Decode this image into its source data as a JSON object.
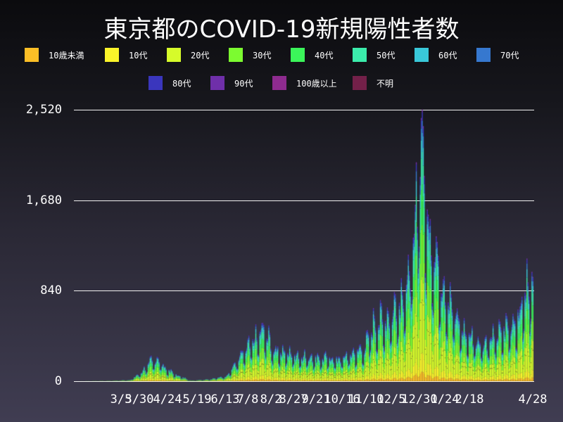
{
  "title": "東京都のCOVID-19新規陽性者数",
  "legend": [
    {
      "label": "10歳未満",
      "color": "#fbbe26"
    },
    {
      "label": "10代",
      "color": "#fbf42a"
    },
    {
      "label": "20代",
      "color": "#d6fb2a"
    },
    {
      "label": "30代",
      "color": "#7cfb30"
    },
    {
      "label": "40代",
      "color": "#3bf55a"
    },
    {
      "label": "50代",
      "color": "#3becab"
    },
    {
      "label": "60代",
      "color": "#39c8d9"
    },
    {
      "label": "70代",
      "color": "#3678cf"
    },
    {
      "label": "80代",
      "color": "#3a36bd"
    },
    {
      "label": "90代",
      "color": "#6f2fa9"
    },
    {
      "label": "100歳以上",
      "color": "#8e2b8f"
    },
    {
      "label": "不明",
      "color": "#732049"
    }
  ],
  "yaxis": {
    "ticks": [
      "2,520",
      "1,680",
      "840",
      "0"
    ],
    "values": [
      2520,
      1680,
      840,
      0
    ]
  },
  "xaxis": {
    "ticks": [
      "3/5",
      "3/30",
      "4/24",
      "5/19",
      "6/13",
      "7/8",
      "8/2",
      "8/27",
      "9/21",
      "10/16",
      "11/10",
      "12/5",
      "12/30",
      "1/24",
      "2/18",
      "4/28"
    ]
  },
  "chart_data": {
    "type": "bar",
    "stacked": true,
    "title": "東京都のCOVID-19新規陽性者数",
    "xlabel": "",
    "ylabel": "",
    "ylim": [
      0,
      2520
    ],
    "grid": true,
    "legend_position": "top",
    "x_start": "2020-01-24",
    "x_end": "2021-04-28",
    "series_names": [
      "10歳未満",
      "10代",
      "20代",
      "30代",
      "40代",
      "50代",
      "60代",
      "70代",
      "80代",
      "90代",
      "100歳以上",
      "不明"
    ],
    "age_share": [
      0.035,
      0.07,
      0.28,
      0.19,
      0.15,
      0.12,
      0.07,
      0.045,
      0.03,
      0.01,
      0.0005,
      0.0
    ],
    "daily_total_keypoints": [
      [
        "2020-01-24",
        0
      ],
      [
        "2020-02-28",
        3
      ],
      [
        "2020-03-20",
        10
      ],
      [
        "2020-03-31",
        78
      ],
      [
        "2020-04-10",
        180
      ],
      [
        "2020-04-17",
        201
      ],
      [
        "2020-04-25",
        110
      ],
      [
        "2020-05-05",
        60
      ],
      [
        "2020-05-20",
        5
      ],
      [
        "2020-06-10",
        20
      ],
      [
        "2020-06-25",
        50
      ],
      [
        "2020-07-10",
        240
      ],
      [
        "2020-08-01",
        470
      ],
      [
        "2020-08-10",
        300
      ],
      [
        "2020-08-27",
        250
      ],
      [
        "2020-09-20",
        220
      ],
      [
        "2020-10-16",
        200
      ],
      [
        "2020-11-10",
        300
      ],
      [
        "2020-11-20",
        530
      ],
      [
        "2020-12-05",
        580
      ],
      [
        "2020-12-24",
        880
      ],
      [
        "2020-12-31",
        1337
      ],
      [
        "2021-01-07",
        2520
      ],
      [
        "2021-01-09",
        1680
      ],
      [
        "2021-01-14",
        1400
      ],
      [
        "2021-01-24",
        986
      ],
      [
        "2021-02-04",
        700
      ],
      [
        "2021-02-18",
        440
      ],
      [
        "2021-03-10",
        340
      ],
      [
        "2021-03-24",
        420
      ],
      [
        "2021-04-14",
        590
      ],
      [
        "2021-04-22",
        861
      ],
      [
        "2021-04-28",
        925
      ]
    ]
  }
}
